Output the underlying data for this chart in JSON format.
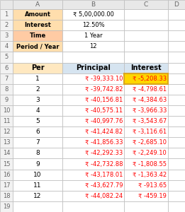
{
  "top_labels": [
    "A",
    "B",
    "C",
    "D"
  ],
  "top_rows": [
    [
      "Amount",
      "₹ 5,00,000.00"
    ],
    [
      "Interest",
      "12.50%"
    ],
    [
      "Time",
      "1 Year"
    ],
    [
      "Period / Year",
      "12"
    ]
  ],
  "col_headers": [
    "Per",
    "Principal",
    "Interest"
  ],
  "data_rows": [
    [
      "1",
      "₹ -39,333.10",
      "₹ -5,208.33"
    ],
    [
      "2",
      "₹ -39,742.82",
      "₹ -4,798.61"
    ],
    [
      "3",
      "₹ -40,156.81",
      "₹ -4,384.63"
    ],
    [
      "4",
      "₹ -40,575.11",
      "₹ -3,966.33"
    ],
    [
      "5",
      "₹ -40,997.76",
      "₹ -3,543.67"
    ],
    [
      "6",
      "₹ -41,424.82",
      "₹ -3,116.61"
    ],
    [
      "7",
      "₹ -41,856.33",
      "₹ -2,685.10"
    ],
    [
      "8",
      "₹ -42,292.33",
      "₹ -2,249.10"
    ],
    [
      "9",
      "₹ -42,732.88",
      "₹ -1,808.55"
    ],
    [
      "10",
      "₹ -43,178.01",
      "₹ -1,363.42"
    ],
    [
      "11",
      "₹ -43,627.79",
      "₹ -913.65"
    ],
    [
      "12",
      "₹ -44,082.24",
      "₹ -459.19"
    ]
  ],
  "highlight_row": 0,
  "highlight_col": 2,
  "highlight_color": "#FFD700",
  "highlight_border_color": "#DAA520",
  "bg_color": "#FFFFFF",
  "top_A_bg": "#FFDEAD",
  "top_Time_bg": "#FFCBA4",
  "col_per_bg": "#FFE8C0",
  "col_principal_bg": "#D6E4F0",
  "col_interest_bg": "#D6E4F0",
  "text_red": "#FF0000",
  "text_black": "#000000",
  "text_gray": "#666666",
  "grid_color": "#BBBBBB",
  "rn_bg": "#F2F2F2",
  "col_hdr_bg": "#E8E8E8"
}
